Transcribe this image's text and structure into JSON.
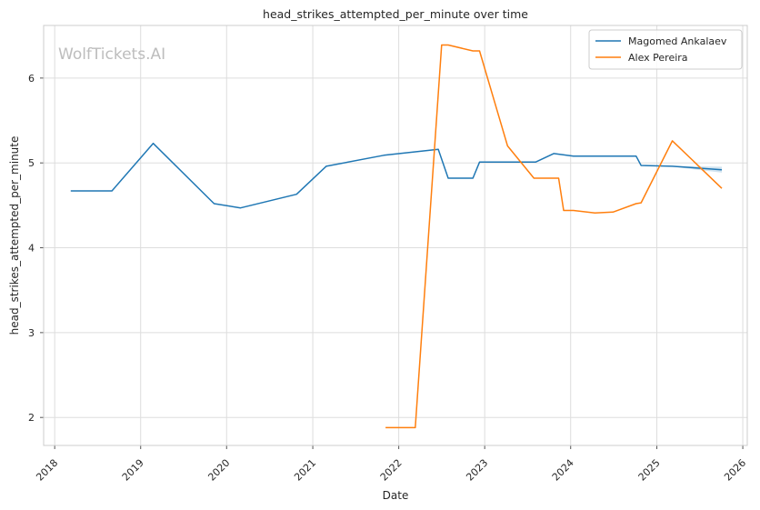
{
  "chart_data": {
    "type": "line",
    "title": "head_strikes_attempted_per_minute over time",
    "xlabel": "Date",
    "ylabel": "head_strikes_attempted_per_minute",
    "watermark": "WolfTickets.AI",
    "x_ticks": [
      "2018",
      "2019",
      "2020",
      "2021",
      "2022",
      "2023",
      "2024",
      "2025",
      "2026"
    ],
    "y_ticks": [
      "2",
      "3",
      "4",
      "5",
      "6"
    ],
    "xlim": [
      "2017-11-15",
      "2026-01-20"
    ],
    "ylim": [
      1.67,
      6.62
    ],
    "grid": true,
    "legend_position": "top-right",
    "series": [
      {
        "name": "Magomed Ankalaev",
        "color": "#1f77b4",
        "points": [
          [
            "2018-03-10",
            4.67
          ],
          [
            "2018-09-01",
            4.67
          ],
          [
            "2019-02-23",
            5.23
          ],
          [
            "2019-11-09",
            4.52
          ],
          [
            "2020-02-29",
            4.47
          ],
          [
            "2020-10-24",
            4.63
          ],
          [
            "2021-02-27",
            4.96
          ],
          [
            "2021-10-30",
            5.09
          ],
          [
            "2022-06-18",
            5.16
          ],
          [
            "2022-07-30",
            4.82
          ],
          [
            "2022-11-12",
            4.82
          ],
          [
            "2022-12-10",
            5.01
          ],
          [
            "2023-08-05",
            5.01
          ],
          [
            "2023-10-21",
            5.11
          ],
          [
            "2024-01-13",
            5.08
          ],
          [
            "2024-10-05",
            5.08
          ],
          [
            "2024-10-26",
            4.97
          ],
          [
            "2025-03-08",
            4.96
          ],
          [
            "2025-10-04",
            4.92
          ]
        ]
      },
      {
        "name": "Alex Pereira",
        "color": "#ff7f0e",
        "points": [
          [
            "2021-11-06",
            1.88
          ],
          [
            "2022-03-12",
            1.88
          ],
          [
            "2022-07-02",
            6.39
          ],
          [
            "2022-07-30",
            6.39
          ],
          [
            "2022-11-12",
            6.32
          ],
          [
            "2022-12-10",
            6.32
          ],
          [
            "2023-04-08",
            5.2
          ],
          [
            "2023-07-29",
            4.82
          ],
          [
            "2023-11-11",
            4.82
          ],
          [
            "2023-12-02",
            4.44
          ],
          [
            "2024-01-13",
            4.44
          ],
          [
            "2024-04-13",
            4.41
          ],
          [
            "2024-06-29",
            4.42
          ],
          [
            "2024-10-05",
            4.52
          ],
          [
            "2024-10-26",
            4.53
          ],
          [
            "2025-03-08",
            5.26
          ],
          [
            "2025-10-04",
            4.7
          ]
        ]
      }
    ]
  }
}
